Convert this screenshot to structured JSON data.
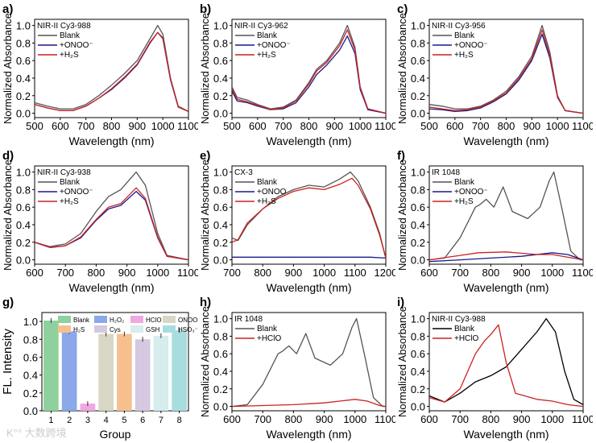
{
  "watermark": "K°° 大数跨境",
  "chart_data": [
    {
      "label": "a)",
      "type": "line",
      "title": "NIR-II Cy3-988",
      "xlabel": "Wavelength (nm)",
      "ylabel": "Normalized Absorbance",
      "xlim": [
        500,
        1100
      ],
      "xticks": [
        500,
        600,
        700,
        800,
        900,
        1000,
        1100
      ],
      "ylim": [
        -0.05,
        1.07
      ],
      "yticks": [
        0.0,
        0.2,
        0.4,
        0.6,
        0.8,
        1.0
      ],
      "legend": "top-left",
      "series": [
        {
          "name": "Blank",
          "color": "#555555",
          "x": [
            500,
            550,
            600,
            650,
            700,
            750,
            800,
            850,
            900,
            950,
            980,
            1000,
            1030,
            1060,
            1100
          ],
          "y": [
            0.12,
            0.08,
            0.05,
            0.05,
            0.1,
            0.2,
            0.32,
            0.45,
            0.6,
            0.85,
            1.0,
            0.9,
            0.4,
            0.08,
            0.02
          ]
        },
        {
          "name": "+ONOO⁻",
          "color": "#1a1a8c",
          "x": [
            500,
            550,
            600,
            650,
            700,
            750,
            800,
            850,
            900,
            950,
            980,
            1000,
            1030,
            1060,
            1100
          ],
          "y": [
            0.1,
            0.06,
            0.03,
            0.03,
            0.08,
            0.17,
            0.27,
            0.4,
            0.55,
            0.8,
            0.92,
            0.85,
            0.38,
            0.07,
            0.02
          ]
        },
        {
          "name": "+H₂S",
          "color": "#cc2222",
          "x": [
            500,
            550,
            600,
            650,
            700,
            750,
            800,
            850,
            900,
            950,
            980,
            1000,
            1030,
            1060,
            1100
          ],
          "y": [
            0.1,
            0.06,
            0.03,
            0.03,
            0.08,
            0.17,
            0.28,
            0.41,
            0.56,
            0.81,
            0.92,
            0.86,
            0.39,
            0.07,
            0.02
          ]
        }
      ]
    },
    {
      "label": "b)",
      "type": "line",
      "title": "NIR-II Cy3-962",
      "xlabel": "Wavelength (nm)",
      "ylabel": "Normalized Absorbance",
      "xlim": [
        500,
        1100
      ],
      "xticks": [
        500,
        600,
        700,
        800,
        900,
        1000,
        1100
      ],
      "ylim": [
        -0.05,
        1.07
      ],
      "yticks": [
        0.0,
        0.2,
        0.4,
        0.6,
        0.8,
        1.0
      ],
      "legend": "top-left",
      "series": [
        {
          "name": "Blank",
          "color": "#555555",
          "x": [
            500,
            520,
            560,
            600,
            650,
            700,
            750,
            800,
            830,
            870,
            920,
            950,
            980,
            1000,
            1030,
            1100
          ],
          "y": [
            0.3,
            0.18,
            0.15,
            0.1,
            0.05,
            0.07,
            0.15,
            0.35,
            0.5,
            0.6,
            0.8,
            1.0,
            0.75,
            0.3,
            0.05,
            0.0
          ]
        },
        {
          "name": "+ONOO⁻",
          "color": "#1a1a8c",
          "x": [
            500,
            520,
            560,
            600,
            650,
            700,
            750,
            800,
            830,
            870,
            920,
            950,
            980,
            1000,
            1030,
            1100
          ],
          "y": [
            0.25,
            0.14,
            0.12,
            0.08,
            0.04,
            0.05,
            0.12,
            0.3,
            0.44,
            0.55,
            0.72,
            0.88,
            0.68,
            0.27,
            0.04,
            0.0
          ]
        },
        {
          "name": "+H₂S",
          "color": "#cc2222",
          "x": [
            500,
            520,
            560,
            600,
            650,
            700,
            750,
            800,
            830,
            870,
            920,
            950,
            980,
            1000,
            1030,
            1100
          ],
          "y": [
            0.28,
            0.16,
            0.13,
            0.09,
            0.04,
            0.06,
            0.14,
            0.33,
            0.48,
            0.58,
            0.77,
            0.95,
            0.72,
            0.29,
            0.05,
            0.0
          ]
        }
      ]
    },
    {
      "label": "c)",
      "type": "line",
      "title": "NIR-II Cy3-956",
      "xlabel": "Wavelength (nm)",
      "ylabel": "Normalized Absorbance",
      "xlim": [
        500,
        1100
      ],
      "xticks": [
        500,
        600,
        700,
        800,
        900,
        1000,
        1100
      ],
      "ylim": [
        -0.05,
        1.07
      ],
      "yticks": [
        0.0,
        0.2,
        0.4,
        0.6,
        0.8,
        1.0
      ],
      "legend": "top-left",
      "series": [
        {
          "name": "Blank",
          "color": "#555555",
          "x": [
            500,
            550,
            600,
            650,
            700,
            750,
            800,
            850,
            900,
            940,
            970,
            1000,
            1030,
            1100
          ],
          "y": [
            0.1,
            0.08,
            0.05,
            0.05,
            0.08,
            0.15,
            0.25,
            0.42,
            0.65,
            1.0,
            0.7,
            0.2,
            0.03,
            0.0
          ]
        },
        {
          "name": "+ONOO⁻",
          "color": "#1a1a8c",
          "x": [
            500,
            550,
            600,
            650,
            700,
            750,
            800,
            850,
            900,
            940,
            970,
            1000,
            1030,
            1100
          ],
          "y": [
            0.05,
            0.04,
            0.02,
            0.03,
            0.06,
            0.13,
            0.22,
            0.38,
            0.6,
            0.9,
            0.63,
            0.18,
            0.03,
            0.0
          ]
        },
        {
          "name": "+H₂S",
          "color": "#cc2222",
          "x": [
            500,
            550,
            600,
            650,
            700,
            750,
            800,
            850,
            900,
            940,
            970,
            1000,
            1030,
            1100
          ],
          "y": [
            0.07,
            0.05,
            0.03,
            0.04,
            0.07,
            0.14,
            0.23,
            0.4,
            0.62,
            0.95,
            0.66,
            0.19,
            0.03,
            0.0
          ]
        }
      ]
    },
    {
      "label": "d)",
      "type": "line",
      "title": "NIR-II Cy3-938",
      "xlabel": "Wavelength (nm)",
      "ylabel": "Normalized Absorbance",
      "xlim": [
        600,
        1100
      ],
      "xticks": [
        600,
        700,
        800,
        900,
        1000,
        1100
      ],
      "ylim": [
        -0.05,
        1.07
      ],
      "yticks": [
        0.0,
        0.2,
        0.4,
        0.6,
        0.8,
        1.0
      ],
      "legend": "top-left",
      "series": [
        {
          "name": "Blank",
          "color": "#555555",
          "x": [
            600,
            650,
            700,
            750,
            800,
            840,
            880,
            930,
            960,
            1000,
            1030,
            1100
          ],
          "y": [
            0.2,
            0.15,
            0.18,
            0.3,
            0.55,
            0.72,
            0.8,
            1.0,
            0.85,
            0.3,
            0.05,
            0.0
          ]
        },
        {
          "name": "+ONOO⁻",
          "color": "#1a1a8c",
          "x": [
            600,
            650,
            700,
            750,
            800,
            840,
            880,
            930,
            960,
            1000,
            1030,
            1100
          ],
          "y": [
            0.2,
            0.14,
            0.16,
            0.25,
            0.45,
            0.58,
            0.62,
            0.78,
            0.68,
            0.25,
            0.04,
            0.0
          ]
        },
        {
          "name": "+H₂S",
          "color": "#cc2222",
          "x": [
            600,
            650,
            700,
            750,
            800,
            840,
            880,
            930,
            960,
            1000,
            1030,
            1100
          ],
          "y": [
            0.2,
            0.14,
            0.16,
            0.26,
            0.46,
            0.6,
            0.64,
            0.82,
            0.7,
            0.26,
            0.04,
            0.0
          ]
        }
      ]
    },
    {
      "label": "e)",
      "type": "line",
      "title": "CX-3",
      "xlabel": "Wavelength (nm)",
      "ylabel": "Normalized Absorbance",
      "xlim": [
        700,
        1200
      ],
      "xticks": [
        700,
        800,
        900,
        1000,
        1100,
        1200
      ],
      "ylim": [
        -0.05,
        1.07
      ],
      "yticks": [
        0.0,
        0.2,
        0.4,
        0.6,
        0.8,
        1.0
      ],
      "legend": "top-left",
      "series": [
        {
          "name": "Blank",
          "color": "#555555",
          "x": [
            700,
            720,
            750,
            800,
            850,
            900,
            950,
            1000,
            1050,
            1085,
            1110,
            1150,
            1180,
            1200
          ],
          "y": [
            0.25,
            0.22,
            0.4,
            0.58,
            0.72,
            0.8,
            0.85,
            0.83,
            0.92,
            1.0,
            0.9,
            0.6,
            0.3,
            0.02
          ]
        },
        {
          "name": "+ONOO",
          "color": "#1a1a8c",
          "x": [
            700,
            800,
            900,
            1000,
            1100,
            1150,
            1200
          ],
          "y": [
            0.03,
            0.03,
            0.03,
            0.03,
            0.03,
            0.03,
            0.02
          ]
        },
        {
          "name": "+H₂S",
          "color": "#cc2222",
          "x": [
            700,
            720,
            750,
            800,
            850,
            900,
            950,
            1000,
            1050,
            1090,
            1110,
            1150,
            1180,
            1200
          ],
          "y": [
            0.2,
            0.23,
            0.42,
            0.58,
            0.7,
            0.78,
            0.82,
            0.8,
            0.86,
            0.93,
            0.85,
            0.58,
            0.28,
            0.02
          ]
        }
      ]
    },
    {
      "label": "f)",
      "type": "line",
      "title": "IR 1048",
      "xlabel": "Wavelength (nm)",
      "ylabel": "Normalized Absorbance",
      "xlim": [
        600,
        1100
      ],
      "xticks": [
        600,
        700,
        800,
        900,
        1000,
        1100
      ],
      "ylim": [
        -0.05,
        1.07
      ],
      "yticks": [
        0.0,
        0.2,
        0.4,
        0.6,
        0.8,
        1.0
      ],
      "legend": "top-left",
      "series": [
        {
          "name": "Blank",
          "color": "#555555",
          "x": [
            600,
            650,
            700,
            750,
            765,
            785,
            810,
            840,
            870,
            920,
            960,
            990,
            1005,
            1030,
            1060,
            1090,
            1100
          ],
          "y": [
            0.0,
            0.02,
            0.25,
            0.6,
            0.63,
            0.69,
            0.6,
            0.83,
            0.55,
            0.47,
            0.6,
            0.9,
            1.0,
            0.6,
            0.1,
            0.0,
            0.0
          ]
        },
        {
          "name": "+ONOO⁻",
          "color": "#1a1a8c",
          "x": [
            600,
            700,
            800,
            900,
            1000,
            1050,
            1100
          ],
          "y": [
            -0.02,
            0.0,
            0.02,
            0.04,
            0.08,
            0.06,
            0.0
          ]
        },
        {
          "name": "+H₂S",
          "color": "#cc2222",
          "x": [
            600,
            700,
            760,
            850,
            950,
            1000,
            1100
          ],
          "y": [
            0.0,
            0.05,
            0.08,
            0.09,
            0.06,
            0.06,
            0.0
          ]
        }
      ]
    },
    {
      "label": "g)",
      "type": "bar",
      "xlabel": "Group",
      "ylabel": "FL. Intensity",
      "ylim": [
        0,
        1.1
      ],
      "yticks": [
        0.0,
        0.2,
        0.4,
        0.6,
        0.8,
        1.0
      ],
      "categories": [
        "1",
        "2",
        "3",
        "4",
        "5",
        "6",
        "7",
        "8"
      ],
      "legend": "top",
      "names": [
        "Blank",
        "H₂O₂",
        "HClO",
        "ONOO⁻",
        "H₂S",
        "Cys",
        "GSH",
        "HSO₃⁻"
      ],
      "values": [
        1.01,
        0.89,
        0.08,
        0.86,
        0.86,
        0.8,
        0.84,
        0.9
      ],
      "colors": [
        "#8fd19e",
        "#8aa8ea",
        "#f0a8e0",
        "#d8d6c4",
        "#f6c08e",
        "#d6c8e0",
        "#d7ecec",
        "#a8dde0"
      ]
    },
    {
      "label": "h)",
      "type": "line",
      "title": "IR 1048",
      "xlabel": "Wavelength (nm)",
      "ylabel": "Normalized Absorbance",
      "xlim": [
        600,
        1100
      ],
      "xticks": [
        600,
        700,
        800,
        900,
        1000,
        1100
      ],
      "ylim": [
        -0.05,
        1.07
      ],
      "yticks": [
        0.0,
        0.2,
        0.4,
        0.6,
        0.8,
        1.0
      ],
      "legend": "top-left",
      "series": [
        {
          "name": "Blank",
          "color": "#555555",
          "x": [
            600,
            650,
            700,
            750,
            765,
            785,
            810,
            840,
            870,
            920,
            960,
            990,
            1005,
            1030,
            1060,
            1090,
            1100
          ],
          "y": [
            0.0,
            0.02,
            0.25,
            0.6,
            0.63,
            0.69,
            0.6,
            0.83,
            0.55,
            0.47,
            0.6,
            0.9,
            1.0,
            0.6,
            0.1,
            0.0,
            0.0
          ]
        },
        {
          "name": "+HClO",
          "color": "#cc2222",
          "x": [
            600,
            700,
            800,
            900,
            950,
            1000,
            1040,
            1080,
            1100
          ],
          "y": [
            0.0,
            0.01,
            0.02,
            0.04,
            0.06,
            0.08,
            0.06,
            0.01,
            0.0
          ]
        }
      ]
    },
    {
      "label": "i)",
      "type": "line",
      "title": "NIR-II Cy3-988",
      "xlabel": "Wavelength (nm)",
      "ylabel": "Normalized Absorbance",
      "xlim": [
        600,
        1100
      ],
      "xticks": [
        600,
        700,
        800,
        900,
        1000,
        1100
      ],
      "ylim": [
        -0.05,
        1.07
      ],
      "yticks": [
        0.0,
        0.2,
        0.4,
        0.6,
        0.8,
        1.0
      ],
      "legend": "top-left",
      "series": [
        {
          "name": "Blank",
          "color": "#000000",
          "x": [
            600,
            650,
            700,
            750,
            800,
            850,
            900,
            950,
            980,
            1010,
            1040,
            1070,
            1100
          ],
          "y": [
            0.12,
            0.05,
            0.15,
            0.28,
            0.35,
            0.45,
            0.65,
            0.85,
            1.0,
            0.85,
            0.4,
            0.08,
            0.02
          ]
        },
        {
          "name": "+HClO",
          "color": "#cc2222",
          "x": [
            600,
            650,
            700,
            750,
            780,
            800,
            825,
            850,
            880,
            950,
            1000,
            1050,
            1100
          ],
          "y": [
            0.1,
            0.05,
            0.2,
            0.6,
            0.75,
            0.82,
            0.93,
            0.5,
            0.15,
            0.08,
            0.06,
            0.02,
            0.0
          ]
        }
      ]
    }
  ]
}
